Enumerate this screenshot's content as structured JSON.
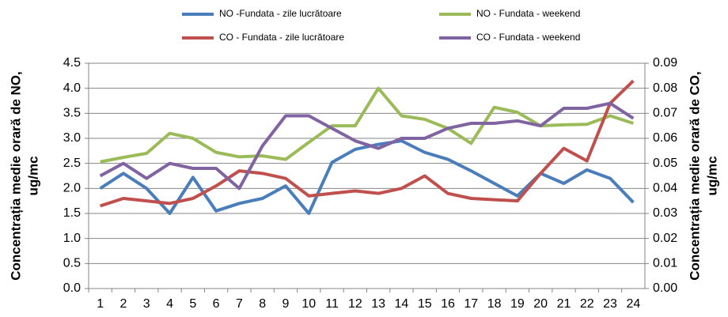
{
  "chart_data": {
    "type": "line",
    "categories": [
      "1",
      "2",
      "3",
      "4",
      "5",
      "6",
      "7",
      "8",
      "9",
      "10",
      "11",
      "12",
      "13",
      "14",
      "15",
      "16",
      "17",
      "18",
      "19",
      "20",
      "21",
      "22",
      "23",
      "24"
    ],
    "y_label": [
      "Concentrația medie orară de NO,",
      "ug/mc"
    ],
    "y2_label": [
      "Concentrația medie orară de CO,",
      "ug/mc"
    ],
    "ylim": [
      0,
      4.5
    ],
    "yticks": [
      {
        "value": 0,
        "label": "0.0"
      },
      {
        "value": 0.5,
        "label": "0.5"
      },
      {
        "value": 1,
        "label": "1.0"
      },
      {
        "value": 1.5,
        "label": "1.5"
      },
      {
        "value": 2,
        "label": "2.0"
      },
      {
        "value": 2.5,
        "label": "2.5"
      },
      {
        "value": 3,
        "label": "3.0"
      },
      {
        "value": 3.5,
        "label": "3.5"
      },
      {
        "value": 4,
        "label": "4.0"
      },
      {
        "value": 4.5,
        "label": "4.5"
      }
    ],
    "y2lim": [
      0,
      0.09
    ],
    "y2ticks": [
      {
        "value": 0,
        "label": "0.00"
      },
      {
        "value": 0.01,
        "label": "0.01"
      },
      {
        "value": 0.02,
        "label": "0.02"
      },
      {
        "value": 0.03,
        "label": "0.03"
      },
      {
        "value": 0.04,
        "label": "0.04"
      },
      {
        "value": 0.05,
        "label": "0.05"
      },
      {
        "value": 0.06,
        "label": "0.06"
      },
      {
        "value": 0.07,
        "label": "0.07"
      },
      {
        "value": 0.08,
        "label": "0.08"
      },
      {
        "value": 0.09,
        "label": "0.09"
      }
    ],
    "grid": true,
    "legend": "top",
    "series": [
      {
        "name": "NO -Fundata - zile lucrătoare",
        "color": "#4a7ebb",
        "values": [
          2.0,
          2.3,
          2.0,
          1.5,
          2.22,
          1.55,
          1.7,
          1.8,
          2.05,
          1.5,
          2.52,
          2.78,
          2.88,
          2.95,
          2.72,
          2.58,
          2.35,
          2.1,
          1.85,
          2.3,
          2.1,
          2.37,
          2.2,
          1.72
        ]
      },
      {
        "name": "NO - Fundata - weekend",
        "color": "#9bbb59",
        "values": [
          2.53,
          2.62,
          2.7,
          3.1,
          3.0,
          2.72,
          2.63,
          2.65,
          2.58,
          2.92,
          3.25,
          3.25,
          4.0,
          3.45,
          3.38,
          3.2,
          2.9,
          3.62,
          3.52,
          3.25,
          3.27,
          3.28,
          3.45,
          3.3
        ]
      },
      {
        "name": "CO - Fundata - zile lucrătoare",
        "color": "#c0504d",
        "axis": "y2",
        "values": [
          0.033,
          0.036,
          0.035,
          0.034,
          0.036,
          0.041,
          0.047,
          0.046,
          0.044,
          0.037,
          0.038,
          0.039,
          0.038,
          0.04,
          0.045,
          0.038,
          0.036,
          0.0355,
          0.035,
          0.046,
          0.056,
          0.051,
          0.074,
          0.083
        ]
      },
      {
        "name": "CO - Fundata - weekend",
        "color": "#8064a2",
        "axis": "y2",
        "values": [
          0.045,
          0.05,
          0.044,
          0.05,
          0.048,
          0.048,
          0.04,
          0.057,
          0.069,
          0.069,
          0.064,
          0.059,
          0.056,
          0.06,
          0.06,
          0.064,
          0.066,
          0.066,
          0.067,
          0.065,
          0.072,
          0.072,
          0.074,
          0.068
        ]
      }
    ]
  }
}
